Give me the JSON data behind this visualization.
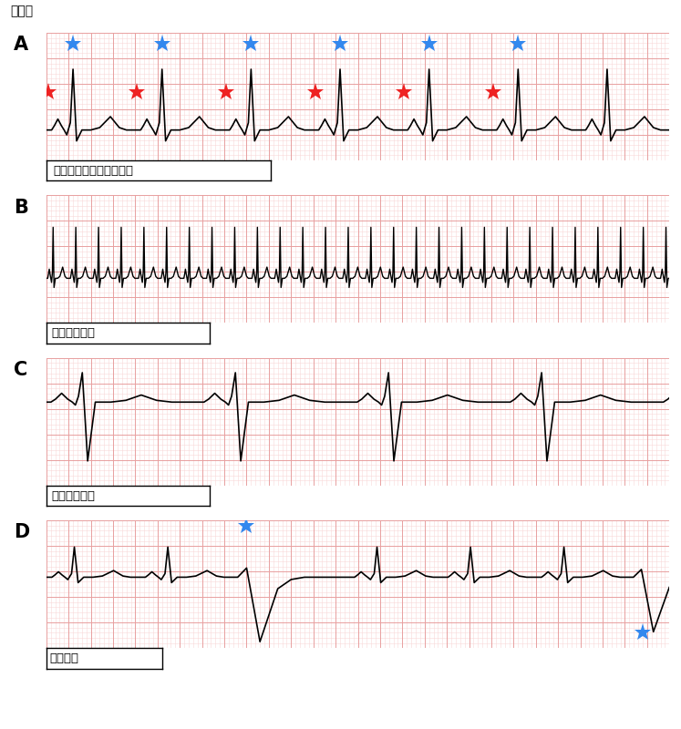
{
  "title": "心電図",
  "panel_labels": [
    "A",
    "B",
    "C",
    "D"
  ],
  "label_A": "正常な脈（正常洞調律）",
  "label_B": "頻脈性不整脈",
  "label_C": "徐脈性不整脈",
  "label_D": "期外収縮",
  "bg_color": "#ffffff",
  "ecg_bg": "#fff8f8",
  "grid_major": "#e8a0a0",
  "grid_minor": "#f8d8d8",
  "line_color": "#000000",
  "star_blue": "#3388ee",
  "star_red": "#ee2222",
  "label_border": "#000000"
}
